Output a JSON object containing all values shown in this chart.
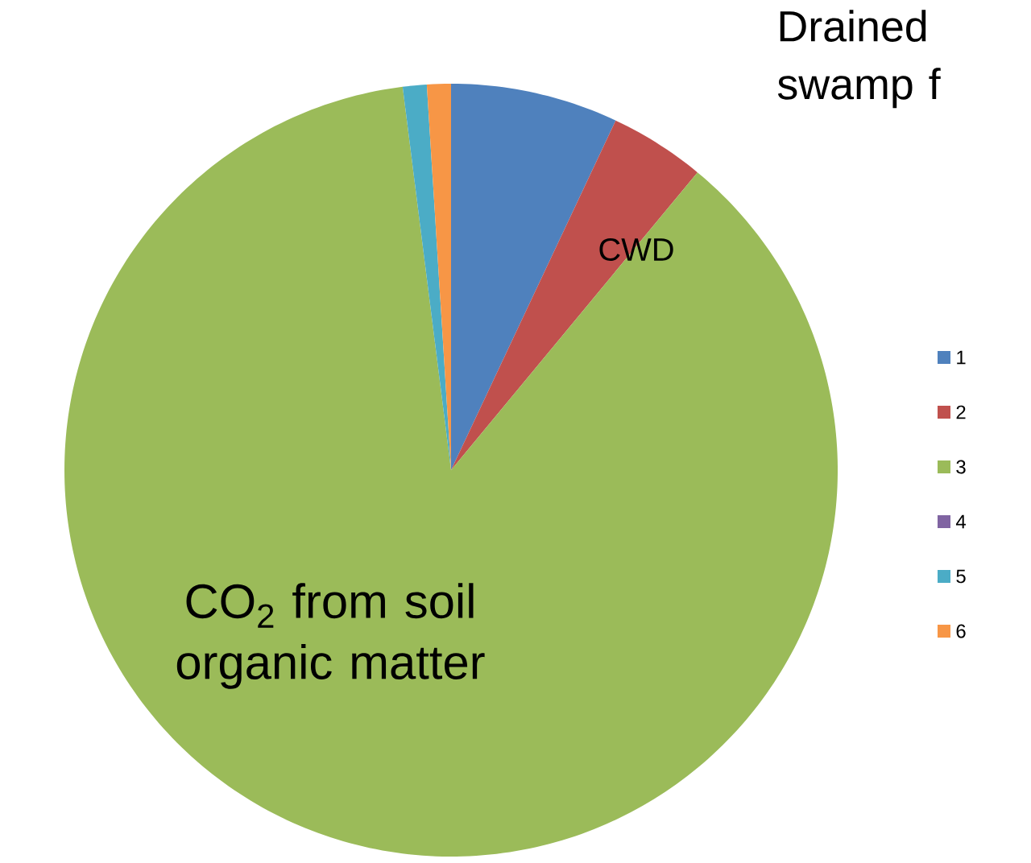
{
  "chart_data": {
    "type": "pie",
    "title": "Drained swamp f",
    "categories": [
      "1",
      "2",
      "3",
      "4",
      "5",
      "6"
    ],
    "values": [
      7,
      4,
      87,
      0,
      1,
      1
    ],
    "colors": [
      "#4f81bd",
      "#c0504d",
      "#9bbb59",
      "#8064a2",
      "#4bacc6",
      "#f79646"
    ],
    "annotations": [
      "CWD",
      "CO$_{2}$ from soil organic matter"
    ],
    "legend": "right"
  }
}
